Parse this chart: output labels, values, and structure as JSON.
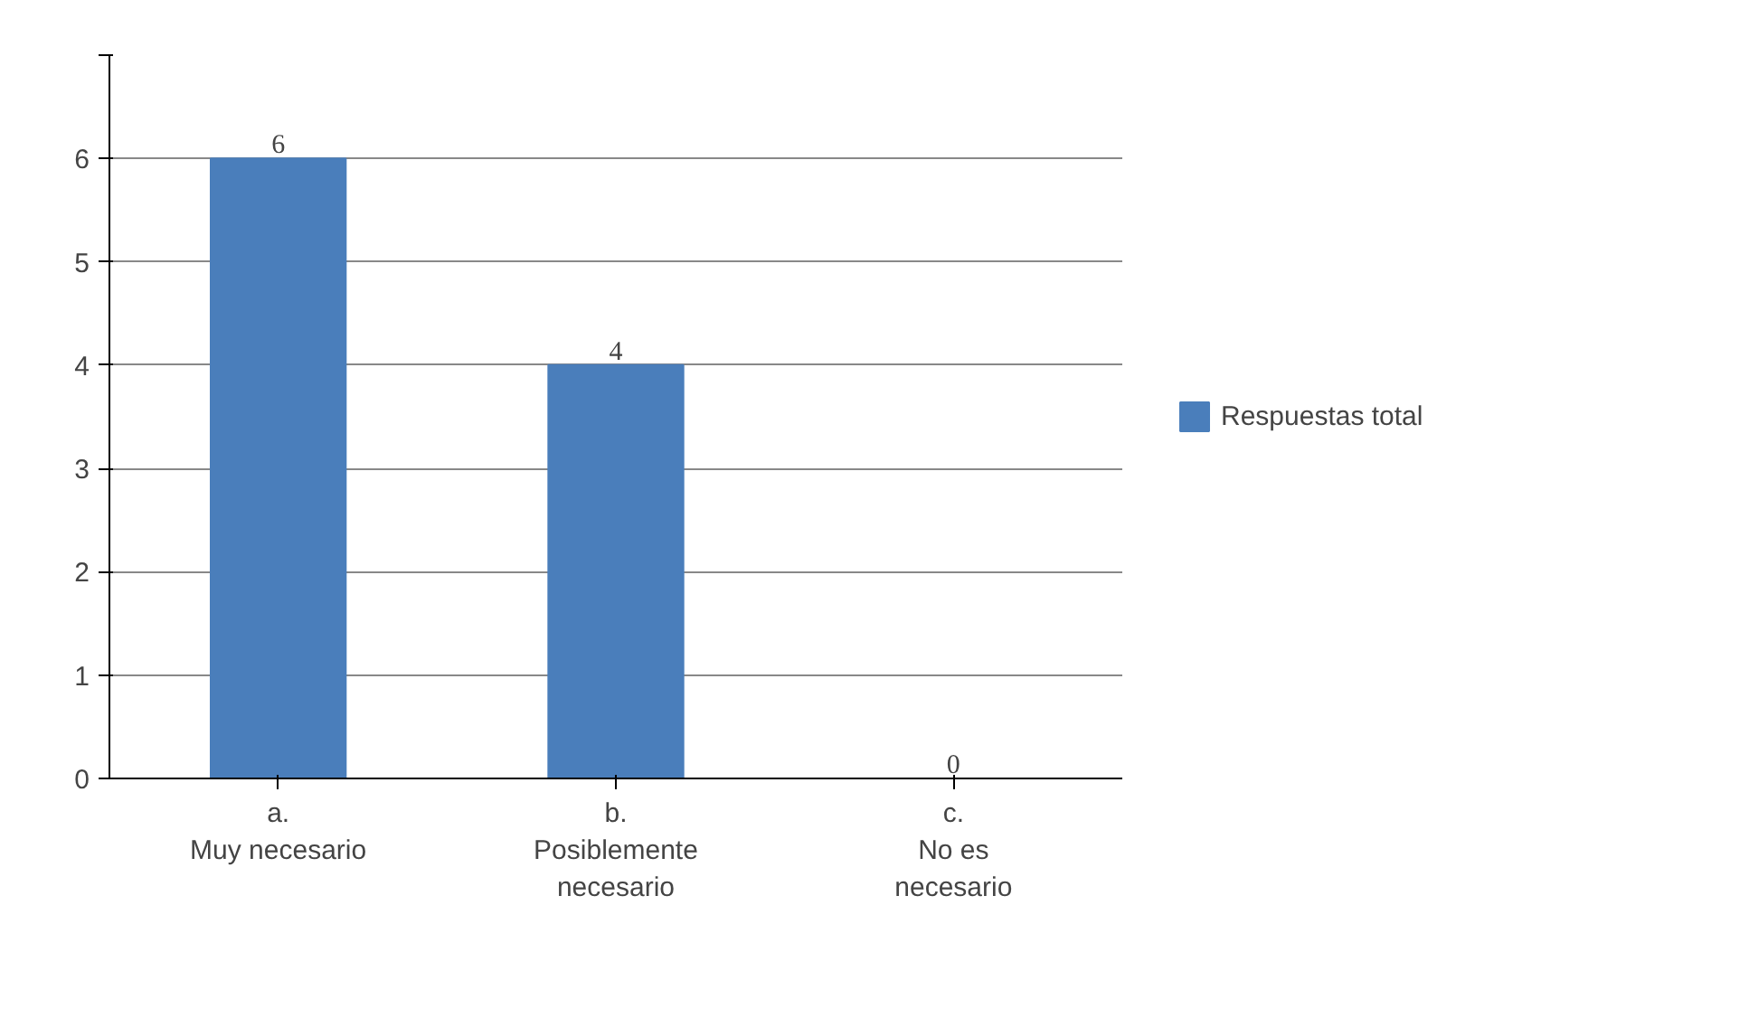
{
  "chart_data": {
    "type": "bar",
    "categories": [
      "a.\nMuy necesario",
      "b.\nPosiblemente\nnecesario",
      "c.\nNo es\nnecesario"
    ],
    "series": [
      {
        "name": "Respuestas total",
        "color": "#4a7ebb",
        "values": [
          6,
          4,
          0
        ]
      }
    ],
    "ylim": [
      0,
      7
    ],
    "yticks": [
      0,
      1,
      2,
      3,
      4,
      5,
      6,
      {
        "value": 7,
        "label": null
      }
    ],
    "grid": "y",
    "legend": "right",
    "data_labels": true
  }
}
